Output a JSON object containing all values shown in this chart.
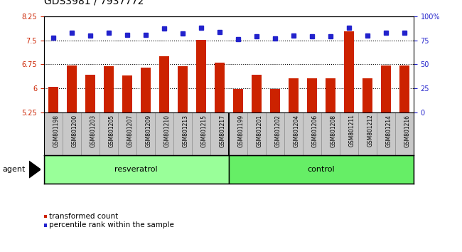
{
  "title": "GDS3981 / 7937772",
  "samples": [
    "GSM801198",
    "GSM801200",
    "GSM801203",
    "GSM801205",
    "GSM801207",
    "GSM801209",
    "GSM801210",
    "GSM801213",
    "GSM801215",
    "GSM801217",
    "GSM801199",
    "GSM801201",
    "GSM801202",
    "GSM801204",
    "GSM801206",
    "GSM801208",
    "GSM801211",
    "GSM801212",
    "GSM801214",
    "GSM801216"
  ],
  "bar_values": [
    6.04,
    6.72,
    6.43,
    6.68,
    6.41,
    6.65,
    7.0,
    6.68,
    7.52,
    6.81,
    5.97,
    6.43,
    5.97,
    6.32,
    6.32,
    6.32,
    7.79,
    6.32,
    6.72,
    6.72
  ],
  "percentile_values": [
    78,
    83,
    80,
    83,
    81,
    81,
    87,
    82,
    88,
    84,
    76,
    79,
    77,
    80,
    79,
    79,
    88,
    80,
    83,
    83
  ],
  "resveratrol_count": 10,
  "control_count": 10,
  "ylim_left": [
    5.25,
    8.25
  ],
  "ylim_right": [
    0,
    100
  ],
  "yticks_left": [
    5.25,
    6.0,
    6.75,
    7.5,
    8.25
  ],
  "yticks_right": [
    0,
    25,
    50,
    75,
    100
  ],
  "ytick_labels_left": [
    "5.25",
    "6",
    "6.75",
    "7.5",
    "8.25"
  ],
  "ytick_labels_right": [
    "0",
    "25",
    "50",
    "75",
    "100%"
  ],
  "hlines": [
    6.0,
    6.75,
    7.5
  ],
  "bar_color": "#CC2200",
  "dot_color": "#2222CC",
  "bar_width": 0.55,
  "resveratrol_color": "#99FF99",
  "control_color": "#66EE66",
  "agent_label": "agent",
  "resveratrol_label": "resveratrol",
  "control_label": "control",
  "legend_bar_label": "transformed count",
  "legend_dot_label": "percentile rank within the sample",
  "title_fontsize": 10,
  "tick_fontsize": 7,
  "label_fontsize": 8,
  "sample_fontsize": 5.5
}
